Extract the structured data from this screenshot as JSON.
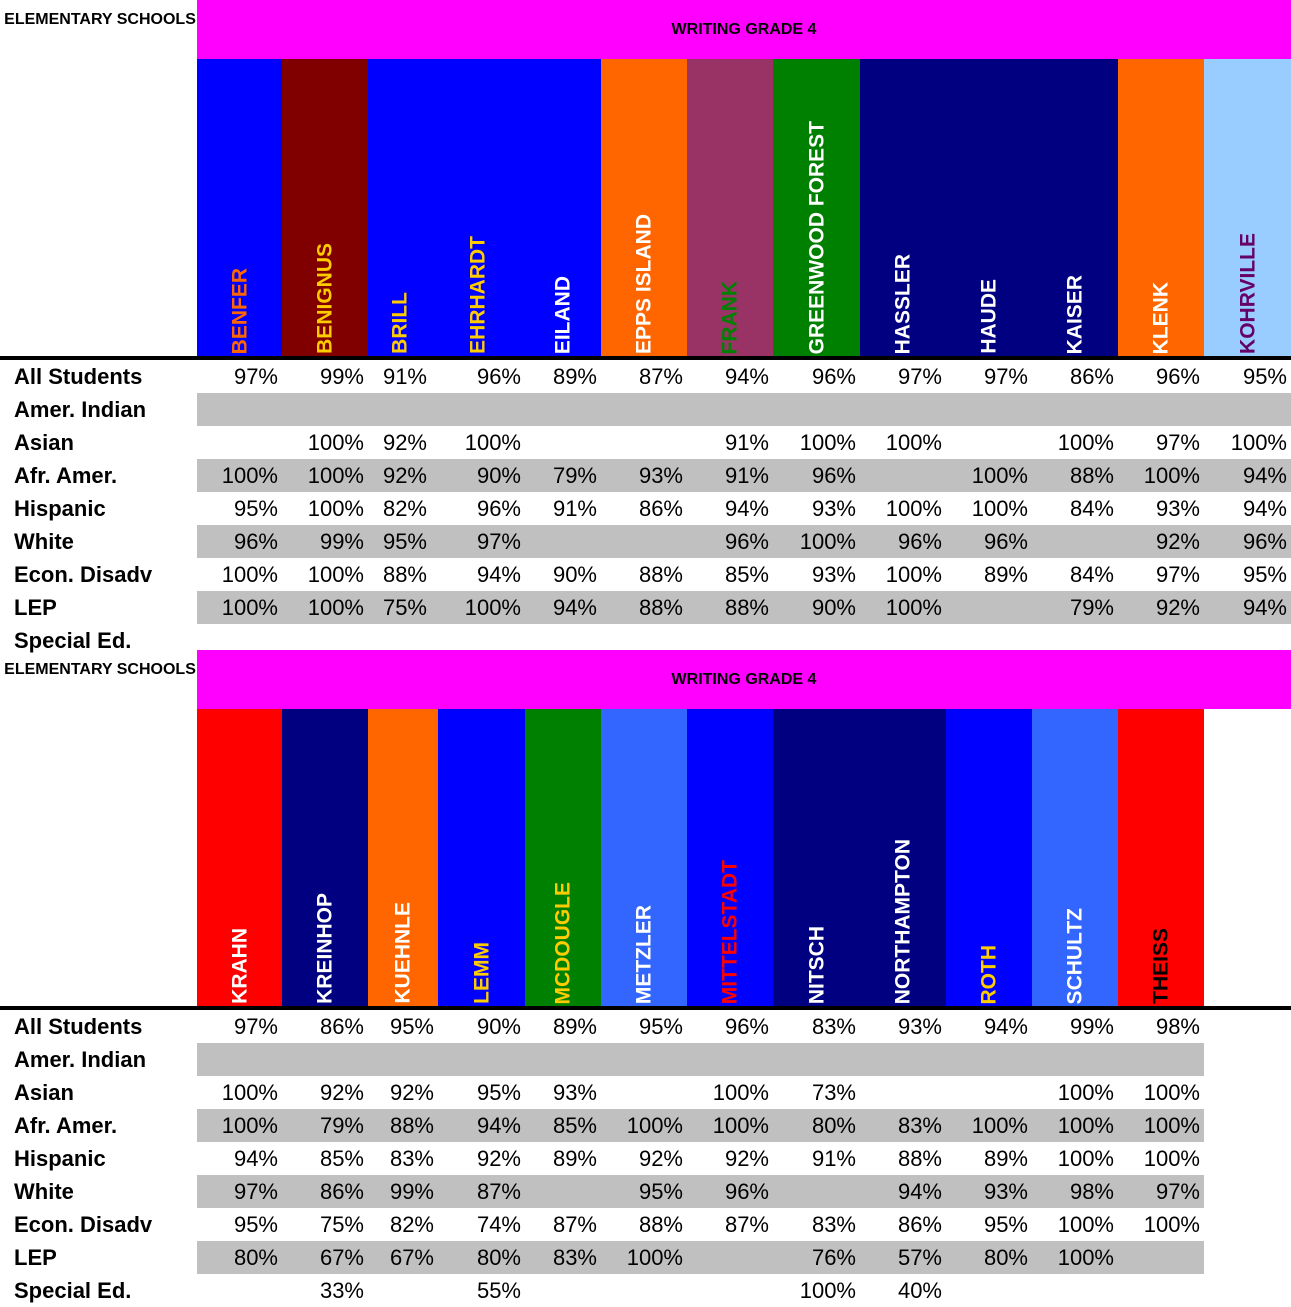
{
  "tables": [
    {
      "corner_label": "ELEMENTARY SCHOOLS",
      "banner": "WRITING GRADE 4",
      "schools": [
        {
          "name": "BENFER",
          "bg": "#0000ff",
          "fg": "#ff6600"
        },
        {
          "name": "BENIGNUS",
          "bg": "#800000",
          "fg": "#ffcc00"
        },
        {
          "name": "BRILL",
          "bg": "#0000ff",
          "fg": "#ffcc00"
        },
        {
          "name": "EHRHARDT",
          "bg": "#0000ff",
          "fg": "#ffcc00"
        },
        {
          "name": "EILAND",
          "bg": "#0000ff",
          "fg": "#ffffff"
        },
        {
          "name": "EPPS ISLAND",
          "bg": "#ff6600",
          "fg": "#ffffff"
        },
        {
          "name": "FRANK",
          "bg": "#993366",
          "fg": "#008000"
        },
        {
          "name": "GREENWOOD FOREST",
          "bg": "#008000",
          "fg": "#ffffff"
        },
        {
          "name": "HASSLER",
          "bg": "#000080",
          "fg": "#ffffff"
        },
        {
          "name": "HAUDE",
          "bg": "#000080",
          "fg": "#ffffff"
        },
        {
          "name": "KAISER",
          "bg": "#000080",
          "fg": "#ffffff"
        },
        {
          "name": "KLENK",
          "bg": "#ff6600",
          "fg": "#ffffff"
        },
        {
          "name": "KOHRVILLE",
          "bg": "#99ccff",
          "fg": "#660066"
        }
      ],
      "rows": [
        {
          "label": "All Students",
          "values": [
            "97%",
            "99%",
            "91%",
            "96%",
            "89%",
            "87%",
            "94%",
            "96%",
            "97%",
            "97%",
            "86%",
            "96%",
            "95%"
          ]
        },
        {
          "label": "Amer. Indian",
          "values": [
            "",
            "",
            "",
            "",
            "",
            "",
            "",
            "",
            "",
            "",
            "",
            "",
            ""
          ]
        },
        {
          "label": "Asian",
          "values": [
            "",
            "100%",
            "92%",
            "100%",
            "",
            "",
            "91%",
            "100%",
            "100%",
            "",
            "100%",
            "97%",
            "100%"
          ]
        },
        {
          "label": "Afr. Amer.",
          "values": [
            "100%",
            "100%",
            "92%",
            "90%",
            "79%",
            "93%",
            "91%",
            "96%",
            "",
            "100%",
            "88%",
            "100%",
            "94%"
          ]
        },
        {
          "label": "Hispanic",
          "values": [
            "95%",
            "100%",
            "82%",
            "96%",
            "91%",
            "86%",
            "94%",
            "93%",
            "100%",
            "100%",
            "84%",
            "93%",
            "94%"
          ]
        },
        {
          "label": "White",
          "values": [
            "96%",
            "99%",
            "95%",
            "97%",
            "",
            "",
            "96%",
            "100%",
            "96%",
            "96%",
            "",
            "92%",
            "96%"
          ]
        },
        {
          "label": "Econ. Disadv",
          "values": [
            "100%",
            "100%",
            "88%",
            "94%",
            "90%",
            "88%",
            "85%",
            "93%",
            "100%",
            "89%",
            "84%",
            "97%",
            "95%"
          ]
        },
        {
          "label": "LEP",
          "values": [
            "100%",
            "100%",
            "75%",
            "100%",
            "94%",
            "88%",
            "88%",
            "90%",
            "100%",
            "",
            "79%",
            "92%",
            "94%"
          ]
        },
        {
          "label": "Special Ed.",
          "values": [
            "",
            "",
            "",
            "",
            "",
            "",
            "",
            "",
            "",
            "",
            "",
            "",
            ""
          ]
        }
      ]
    },
    {
      "corner_label": "ELEMENTARY SCHOOLS",
      "banner": "WRITING GRADE 4",
      "schools": [
        {
          "name": "KRAHN",
          "bg": "#ff0000",
          "fg": "#ffffff"
        },
        {
          "name": "KREINHOP",
          "bg": "#000080",
          "fg": "#ffffff"
        },
        {
          "name": "KUEHNLE",
          "bg": "#ff6600",
          "fg": "#ffffff"
        },
        {
          "name": "LEMM",
          "bg": "#0000ff",
          "fg": "#ffcc00"
        },
        {
          "name": "MCDOUGLE",
          "bg": "#008000",
          "fg": "#ffcc00"
        },
        {
          "name": "METZLER",
          "bg": "#3366ff",
          "fg": "#ffffff"
        },
        {
          "name": "MITTELSTADT",
          "bg": "#0000ff",
          "fg": "#ff0000"
        },
        {
          "name": "NITSCH",
          "bg": "#000080",
          "fg": "#ffffff"
        },
        {
          "name": "NORTHAMPTON",
          "bg": "#000080",
          "fg": "#ffffff"
        },
        {
          "name": "ROTH",
          "bg": "#0000ff",
          "fg": "#ffcc00"
        },
        {
          "name": "SCHULTZ",
          "bg": "#3366ff",
          "fg": "#ffffff"
        },
        {
          "name": "THEISS",
          "bg": "#ff0000",
          "fg": "#000000"
        }
      ],
      "rows": [
        {
          "label": "All Students",
          "values": [
            "97%",
            "86%",
            "95%",
            "90%",
            "89%",
            "95%",
            "96%",
            "83%",
            "93%",
            "94%",
            "99%",
            "98%"
          ]
        },
        {
          "label": "Amer. Indian",
          "values": [
            "",
            "",
            "",
            "",
            "",
            "",
            "",
            "",
            "",
            "",
            "",
            ""
          ]
        },
        {
          "label": "Asian",
          "values": [
            "100%",
            "92%",
            "92%",
            "95%",
            "93%",
            "",
            "100%",
            "73%",
            "",
            "",
            "100%",
            "100%"
          ]
        },
        {
          "label": "Afr. Amer.",
          "values": [
            "100%",
            "79%",
            "88%",
            "94%",
            "85%",
            "100%",
            "100%",
            "80%",
            "83%",
            "100%",
            "100%",
            "100%"
          ]
        },
        {
          "label": "Hispanic",
          "values": [
            "94%",
            "85%",
            "83%",
            "92%",
            "89%",
            "92%",
            "92%",
            "91%",
            "88%",
            "89%",
            "100%",
            "100%"
          ]
        },
        {
          "label": "White",
          "values": [
            "97%",
            "86%",
            "99%",
            "87%",
            "",
            "95%",
            "96%",
            "",
            "94%",
            "93%",
            "98%",
            "97%"
          ]
        },
        {
          "label": "Econ. Disadv",
          "values": [
            "95%",
            "75%",
            "82%",
            "74%",
            "87%",
            "88%",
            "87%",
            "83%",
            "86%",
            "95%",
            "100%",
            "100%"
          ]
        },
        {
          "label": "LEP",
          "values": [
            "80%",
            "67%",
            "67%",
            "80%",
            "83%",
            "100%",
            "",
            "76%",
            "57%",
            "80%",
            "100%",
            ""
          ]
        },
        {
          "label": "Special Ed.",
          "values": [
            "",
            "33%",
            "",
            "55%",
            "",
            "",
            "",
            "100%",
            "40%",
            "",
            "",
            ""
          ]
        }
      ]
    }
  ]
}
